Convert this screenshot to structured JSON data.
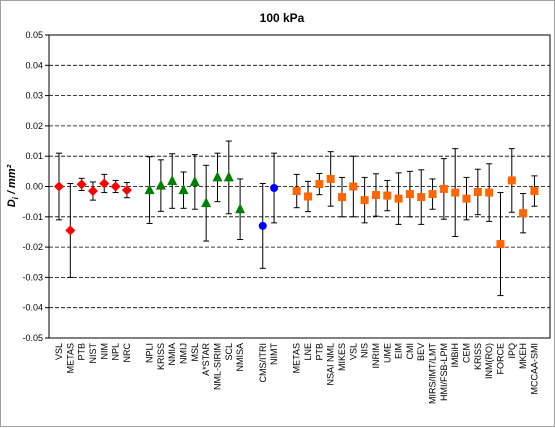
{
  "chart_data": {
    "type": "scatter",
    "title": "100 kPa",
    "ylabel": "Di / mm²",
    "ylabel_main": "D",
    "ylabel_sub": "i",
    "ylabel_unit": " / mm²",
    "xlabel": "",
    "ylim": [
      -0.05,
      0.05
    ],
    "yticks": [
      0.05,
      0.04,
      0.03,
      0.02,
      0.01,
      0.0,
      -0.01,
      -0.02,
      -0.03,
      -0.04,
      -0.05
    ],
    "ytick_labels": [
      "0.05",
      "0.04",
      "0.03",
      "0.02",
      "0.01",
      "0.00",
      "-0.01",
      "-0.02",
      "-0.03",
      "-0.04",
      "-0.05"
    ],
    "grid": "horizontal dashed",
    "legend": "none",
    "series": [
      {
        "marker": "diamond",
        "color": "#ff0000",
        "points": [
          {
            "label": "VSL",
            "slot": 0,
            "value": 0.0,
            "u": 0.011
          },
          {
            "label": "METAS",
            "slot": 1,
            "value": -0.0145,
            "u": 0.0155
          },
          {
            "label": "PTB",
            "slot": 2,
            "value": 0.0007,
            "u": 0.002
          },
          {
            "label": "NIST",
            "slot": 3,
            "value": -0.0015,
            "u": 0.003
          },
          {
            "label": "NIM",
            "slot": 4,
            "value": 0.001,
            "u": 0.003
          },
          {
            "label": "NPL",
            "slot": 5,
            "value": 0.0,
            "u": 0.002
          },
          {
            "label": "NRC",
            "slot": 6,
            "value": -0.0012,
            "u": 0.0025
          }
        ]
      },
      {
        "marker": "triangle",
        "color": "#008000",
        "points": [
          {
            "label": "NPLI",
            "slot": 8,
            "value": -0.0012,
            "u": 0.011
          },
          {
            "label": "KRISS",
            "slot": 9,
            "value": 0.0003,
            "u": 0.0085
          },
          {
            "label": "NMIA",
            "slot": 10,
            "value": 0.0018,
            "u": 0.009
          },
          {
            "label": "NMIJ",
            "slot": 11,
            "value": -0.0012,
            "u": 0.006
          },
          {
            "label": "MSL",
            "slot": 12,
            "value": 0.0015,
            "u": 0.009
          },
          {
            "label": "A*STAR",
            "slot": 13,
            "value": -0.0055,
            "u": 0.0125
          },
          {
            "label": "NML-SIRIM",
            "slot": 14,
            "value": 0.003,
            "u": 0.008
          },
          {
            "label": "SCL",
            "slot": 15,
            "value": 0.003,
            "u": 0.012
          },
          {
            "label": "NMISA",
            "slot": 16,
            "value": -0.0075,
            "u": 0.01
          }
        ]
      },
      {
        "marker": "circle",
        "color": "#0000ff",
        "points": [
          {
            "label": "CMS/ITRI",
            "slot": 18,
            "value": -0.013,
            "u": 0.014
          },
          {
            "label": "NIMT",
            "slot": 19,
            "value": -0.0005,
            "u": 0.0115
          }
        ]
      },
      {
        "marker": "square",
        "color": "#ff6600",
        "points": [
          {
            "label": "METAS",
            "slot": 21,
            "value": -0.0015,
            "u": 0.0055
          },
          {
            "label": "LNE",
            "slot": 22,
            "value": -0.0033,
            "u": 0.005
          },
          {
            "label": "PTB",
            "slot": 23,
            "value": 0.0008,
            "u": 0.0035
          },
          {
            "label": "NSAI NML",
            "slot": 24,
            "value": 0.0025,
            "u": 0.009
          },
          {
            "label": "MIKES",
            "slot": 25,
            "value": -0.0035,
            "u": 0.0065
          },
          {
            "label": "VSL",
            "slot": 26,
            "value": 0.0,
            "u": 0.01
          },
          {
            "label": "NIS",
            "slot": 27,
            "value": -0.0045,
            "u": 0.0075
          },
          {
            "label": "INRIM",
            "slot": 28,
            "value": -0.0028,
            "u": 0.007
          },
          {
            "label": "UME",
            "slot": 29,
            "value": -0.003,
            "u": 0.005
          },
          {
            "label": "EIM",
            "slot": 30,
            "value": -0.004,
            "u": 0.0085
          },
          {
            "label": "CMI",
            "slot": 31,
            "value": -0.0025,
            "u": 0.0075
          },
          {
            "label": "BEV",
            "slot": 32,
            "value": -0.0035,
            "u": 0.009
          },
          {
            "label": "MIRS/IMT/LMT",
            "slot": 33,
            "value": -0.0025,
            "u": 0.005
          },
          {
            "label": "HMI/FSB-LPM",
            "slot": 34,
            "value": -0.0008,
            "u": 0.01
          },
          {
            "label": "IMBiH",
            "slot": 35,
            "value": -0.002,
            "u": 0.0145
          },
          {
            "label": "CEM",
            "slot": 36,
            "value": -0.004,
            "u": 0.007
          },
          {
            "label": "KRISS",
            "slot": 37,
            "value": -0.0018,
            "u": 0.0075
          },
          {
            "label": "INM(RO)",
            "slot": 38,
            "value": -0.002,
            "u": 0.0095
          },
          {
            "label": "FORCE",
            "slot": 39,
            "value": -0.019,
            "u": 0.017
          },
          {
            "label": "IPQ",
            "slot": 40,
            "value": 0.002,
            "u": 0.0105
          },
          {
            "label": "MKEH",
            "slot": 41,
            "value": -0.0088,
            "u": 0.0065
          },
          {
            "label": "MCCAA-SMI",
            "slot": 42,
            "value": -0.0015,
            "u": 0.005
          }
        ]
      }
    ]
  }
}
